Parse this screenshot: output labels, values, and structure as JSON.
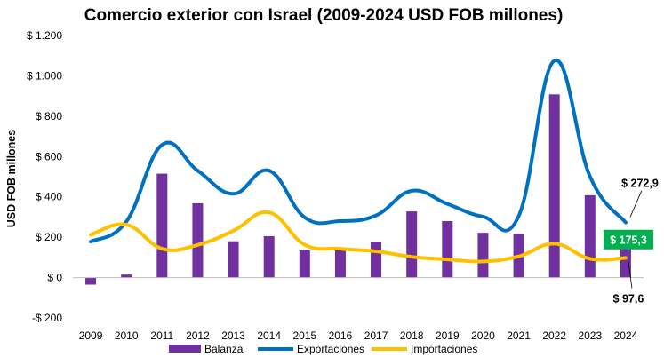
{
  "chart_data": {
    "type": "bar+line",
    "title": "Comercio exterior con Israel (2009-2024 USD FOB millones)",
    "ylabel": "USD FOB millones",
    "xlabel": "",
    "ylim": [
      -200,
      1200
    ],
    "yticks": [
      -200,
      0,
      200,
      400,
      600,
      800,
      1000,
      1200
    ],
    "ytick_labels": [
      "-$ 200",
      "$ 0",
      "$ 200",
      "$ 400",
      "$ 600",
      "$ 800",
      "$ 1.000",
      "$ 1.200"
    ],
    "categories": [
      "2009",
      "2010",
      "2011",
      "2012",
      "2013",
      "2014",
      "2015",
      "2016",
      "2017",
      "2018",
      "2019",
      "2020",
      "2021",
      "2022",
      "2023",
      "2024"
    ],
    "grid": false,
    "legend_position": "bottom",
    "series": [
      {
        "name": "Balanza",
        "kind": "bar",
        "color": "#7030A0",
        "values": [
          -35,
          15,
          515,
          368,
          180,
          205,
          135,
          135,
          178,
          328,
          280,
          222,
          215,
          908,
          408,
          175.3
        ]
      },
      {
        "name": "Exportaciones",
        "kind": "line",
        "color": "#0070C0",
        "values": [
          178,
          278,
          658,
          530,
          415,
          530,
          298,
          280,
          308,
          430,
          365,
          302,
          305,
          1075,
          500,
          272.9
        ]
      },
      {
        "name": "Importaciones",
        "kind": "line",
        "color": "#FFC000",
        "values": [
          212,
          262,
          143,
          162,
          232,
          323,
          163,
          143,
          130,
          103,
          90,
          80,
          105,
          168,
          93,
          97.6
        ]
      }
    ],
    "annotations": [
      {
        "text": "$ 272,9",
        "series": "Exportaciones",
        "category": "2024"
      },
      {
        "text": "$ 175,3",
        "series": "Balanza",
        "category": "2024",
        "boxed": true,
        "box_color": "#00B050"
      },
      {
        "text": "$ 97,6",
        "series": "Importaciones",
        "category": "2024"
      }
    ]
  }
}
